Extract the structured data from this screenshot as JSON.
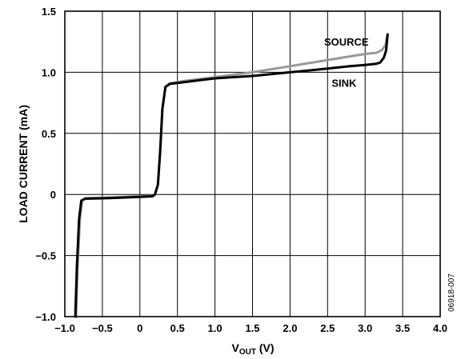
{
  "chart_data": {
    "type": "line",
    "title": "",
    "xlabel": {
      "main": "V",
      "sub": "OUT",
      "unit": " (V)"
    },
    "ylabel": "LOAD CURRENT (mA)",
    "xlim": [
      -1.0,
      4.0
    ],
    "ylim": [
      -1.0,
      1.5
    ],
    "grid": true,
    "x_ticks": [
      -1.0,
      -0.5,
      0,
      0.5,
      1.0,
      1.5,
      2.0,
      2.5,
      3.0,
      3.5,
      4.0
    ],
    "x_tick_labels": [
      "−1.0",
      "−0.5",
      "0",
      "0.5",
      "1.0",
      "1.5",
      "2.0",
      "2.5",
      "3.0",
      "3.5",
      "4.0"
    ],
    "y_ticks": [
      -1.0,
      -0.5,
      0,
      0.5,
      1.0,
      1.5
    ],
    "y_tick_labels": [
      "−1.0",
      "−0.5",
      "0",
      "0.5",
      "1.0",
      "1.5"
    ],
    "series": [
      {
        "name": "SOURCE",
        "color": "#999999",
        "points": [
          [
            -0.85,
            -1.0
          ],
          [
            -0.83,
            -0.6
          ],
          [
            -0.8,
            -0.2
          ],
          [
            -0.77,
            -0.05
          ],
          [
            -0.72,
            -0.03
          ],
          [
            -0.4,
            -0.025
          ],
          [
            0.0,
            -0.015
          ],
          [
            0.18,
            -0.01
          ],
          [
            0.2,
            0.0
          ],
          [
            0.24,
            0.08
          ],
          [
            0.27,
            0.35
          ],
          [
            0.3,
            0.7
          ],
          [
            0.34,
            0.88
          ],
          [
            0.4,
            0.91
          ],
          [
            0.6,
            0.93
          ],
          [
            1.0,
            0.96
          ],
          [
            1.5,
            1.0
          ],
          [
            2.0,
            1.05
          ],
          [
            2.5,
            1.1
          ],
          [
            2.8,
            1.13
          ],
          [
            3.0,
            1.15
          ],
          [
            3.15,
            1.16
          ],
          [
            3.22,
            1.18
          ],
          [
            3.27,
            1.22
          ],
          [
            3.3,
            1.31
          ]
        ]
      },
      {
        "name": "SINK",
        "color": "#000000",
        "points": [
          [
            -0.86,
            -1.0
          ],
          [
            -0.84,
            -0.6
          ],
          [
            -0.81,
            -0.2
          ],
          [
            -0.78,
            -0.05
          ],
          [
            -0.73,
            -0.035
          ],
          [
            -0.4,
            -0.03
          ],
          [
            0.0,
            -0.02
          ],
          [
            0.17,
            -0.015
          ],
          [
            0.2,
            0.0
          ],
          [
            0.24,
            0.08
          ],
          [
            0.27,
            0.35
          ],
          [
            0.3,
            0.7
          ],
          [
            0.34,
            0.88
          ],
          [
            0.4,
            0.905
          ],
          [
            0.6,
            0.92
          ],
          [
            1.0,
            0.95
          ],
          [
            1.5,
            0.97
          ],
          [
            2.0,
            1.0
          ],
          [
            2.5,
            1.03
          ],
          [
            2.8,
            1.05
          ],
          [
            3.0,
            1.06
          ],
          [
            3.15,
            1.07
          ],
          [
            3.2,
            1.08
          ],
          [
            3.25,
            1.12
          ],
          [
            3.28,
            1.18
          ],
          [
            3.3,
            1.31
          ]
        ]
      }
    ],
    "annotations": [
      {
        "text": "SOURCE",
        "x": 2.75,
        "y": 1.22
      },
      {
        "text": "SINK",
        "x": 2.72,
        "y": 0.88
      }
    ],
    "figure_id": "06918-007"
  }
}
